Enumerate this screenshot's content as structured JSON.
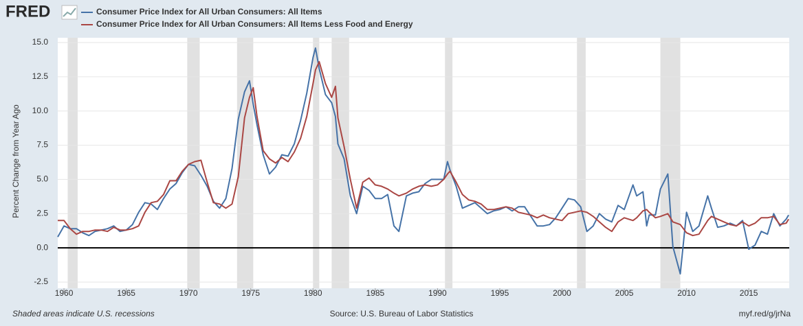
{
  "chart_data": {
    "type": "line",
    "logo": "FRED",
    "y_label": "Percent Change from Year Ago",
    "note": "Shaded areas indicate U.S. recessions",
    "source": "Source: U.S. Bureau of Labor Statistics",
    "link": "myf.red/g/jrNa",
    "xlim": [
      1959.5,
      2018.25
    ],
    "ylim": [
      -2.5,
      15
    ],
    "xticks": [
      1960,
      1965,
      1970,
      1975,
      1980,
      1985,
      1990,
      1995,
      2000,
      2005,
      2010,
      2015
    ],
    "yticks": [
      {
        "value": -2.5,
        "label": "-2.5"
      },
      {
        "value": 0,
        "label": "0.0"
      },
      2.5,
      {
        "value": 5,
        "label": "5.0"
      },
      7.5,
      {
        "value": 10,
        "label": "10.0"
      },
      12.5,
      {
        "value": 15,
        "label": "15.0"
      }
    ],
    "grid": true,
    "recessions": [
      [
        1960.3,
        1961.1
      ],
      [
        1969.9,
        1970.9
      ],
      [
        1973.9,
        1975.2
      ],
      [
        1980.0,
        1980.5
      ],
      [
        1981.5,
        1982.9
      ],
      [
        1990.6,
        1991.2
      ],
      [
        2001.2,
        2001.9
      ],
      [
        2007.9,
        2009.5
      ]
    ],
    "x": [
      1959.5,
      1960,
      1960.5,
      1961,
      1961.5,
      1962,
      1962.5,
      1963,
      1963.5,
      1964,
      1964.5,
      1965,
      1965.5,
      1966,
      1966.5,
      1967,
      1967.5,
      1968,
      1968.5,
      1969,
      1969.5,
      1970,
      1970.5,
      1971,
      1971.5,
      1972,
      1972.5,
      1973,
      1973.5,
      1974,
      1974.5,
      1974.9,
      1975.2,
      1975.5,
      1976,
      1976.5,
      1977,
      1977.5,
      1978,
      1978.5,
      1979,
      1979.5,
      1980,
      1980.2,
      1980.5,
      1981,
      1981.5,
      1981.8,
      1982,
      1982.5,
      1983,
      1983.5,
      1984,
      1984.5,
      1985,
      1985.5,
      1986,
      1986.5,
      1986.9,
      1987.5,
      1988,
      1988.5,
      1989,
      1989.5,
      1990,
      1990.5,
      1990.8,
      1991,
      1991.5,
      1992,
      1992.5,
      1993,
      1993.5,
      1994,
      1994.5,
      1995,
      1995.5,
      1996,
      1996.5,
      1997,
      1997.5,
      1998,
      1998.5,
      1999,
      1999.5,
      2000,
      2000.5,
      2001,
      2001.5,
      2002,
      2002.5,
      2003,
      2003.5,
      2004,
      2004.5,
      2005,
      2005.7,
      2006,
      2006.5,
      2006.8,
      2007,
      2007.5,
      2007.9,
      2008.5,
      2008.9,
      2009.5,
      2010,
      2010.5,
      2011,
      2011.7,
      2012,
      2012.5,
      2013,
      2013.5,
      2014,
      2014.5,
      2015,
      2015.5,
      2016,
      2016.5,
      2017,
      2017.5,
      2018,
      2018.2
    ],
    "series": [
      {
        "name": "Consumer Price Index for All Urban Consumers: All Items",
        "color": "#4572a7",
        "values": [
          0.8,
          1.6,
          1.4,
          1.4,
          1.1,
          0.9,
          1.2,
          1.3,
          1.4,
          1.6,
          1.2,
          1.3,
          1.7,
          2.6,
          3.3,
          3.2,
          2.8,
          3.6,
          4.3,
          4.7,
          5.5,
          6.1,
          6.0,
          5.3,
          4.5,
          3.4,
          2.9,
          3.6,
          5.8,
          9.4,
          11.4,
          12.2,
          10.5,
          9.0,
          6.8,
          5.4,
          5.9,
          6.8,
          6.7,
          7.6,
          9.3,
          11.3,
          13.9,
          14.6,
          13.1,
          11.2,
          10.6,
          9.6,
          7.6,
          6.5,
          3.8,
          2.5,
          4.5,
          4.2,
          3.6,
          3.6,
          3.9,
          1.6,
          1.2,
          3.8,
          4.0,
          4.1,
          4.7,
          5.0,
          5.0,
          5.0,
          6.3,
          5.7,
          4.5,
          2.9,
          3.1,
          3.3,
          2.9,
          2.5,
          2.7,
          2.8,
          3.0,
          2.7,
          3.0,
          3.0,
          2.3,
          1.6,
          1.6,
          1.7,
          2.2,
          2.9,
          3.6,
          3.5,
          3.0,
          1.2,
          1.6,
          2.5,
          2.1,
          1.9,
          3.1,
          2.8,
          4.6,
          3.8,
          4.1,
          1.6,
          2.4,
          2.4,
          4.3,
          5.4,
          0.1,
          -1.9,
          2.6,
          1.2,
          1.6,
          3.8,
          2.9,
          1.5,
          1.6,
          1.8,
          1.6,
          2.0,
          -0.1,
          0.2,
          1.2,
          1.0,
          2.5,
          1.6,
          2.1,
          2.4
        ]
      },
      {
        "name": "Consumer Price Index for All Urban Consumers: All Items Less Food and Energy",
        "color": "#aa4643",
        "values": [
          2.0,
          2.0,
          1.4,
          1.0,
          1.2,
          1.2,
          1.3,
          1.3,
          1.2,
          1.5,
          1.3,
          1.3,
          1.4,
          1.6,
          2.6,
          3.3,
          3.4,
          3.9,
          4.9,
          4.9,
          5.6,
          6.1,
          6.3,
          6.4,
          4.8,
          3.3,
          3.2,
          2.9,
          3.2,
          5.2,
          9.5,
          11.0,
          11.7,
          9.6,
          7.1,
          6.5,
          6.2,
          6.6,
          6.3,
          7.0,
          8.0,
          9.6,
          12.0,
          13.0,
          13.6,
          12.0,
          11.0,
          11.8,
          9.5,
          7.4,
          5.0,
          2.9,
          4.8,
          5.1,
          4.6,
          4.5,
          4.3,
          4.0,
          3.8,
          4.0,
          4.3,
          4.5,
          4.6,
          4.5,
          4.6,
          5.0,
          5.4,
          5.6,
          4.8,
          3.9,
          3.5,
          3.4,
          3.2,
          2.8,
          2.8,
          2.9,
          3.0,
          2.9,
          2.6,
          2.5,
          2.4,
          2.2,
          2.4,
          2.2,
          2.1,
          2.0,
          2.5,
          2.6,
          2.7,
          2.6,
          2.3,
          1.9,
          1.5,
          1.2,
          1.9,
          2.2,
          2.0,
          2.2,
          2.7,
          2.8,
          2.6,
          2.2,
          2.3,
          2.5,
          1.9,
          1.7,
          1.1,
          0.9,
          1.0,
          2.0,
          2.3,
          2.1,
          1.9,
          1.7,
          1.6,
          1.9,
          1.6,
          1.8,
          2.2,
          2.2,
          2.3,
          1.7,
          1.8,
          2.1
        ]
      }
    ]
  }
}
